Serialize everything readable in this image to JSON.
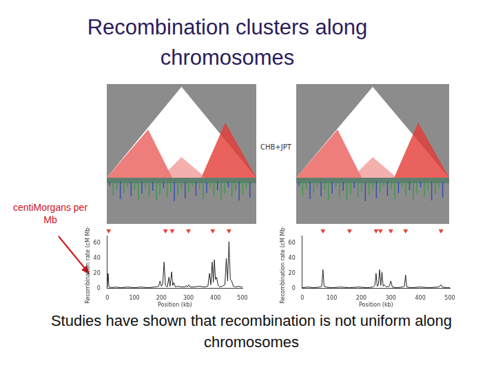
{
  "title": "Recombination clusters along chromosomes",
  "caption": "Studies have shown that recombination is not uniform along chromosomes",
  "annotation": "centiMorgans per Mb",
  "panel_label": "CHB+JPT",
  "chart_data": [
    {
      "type": "line",
      "x_label": "Position (kb)",
      "y_label": "Recombination rate (cM Mb⁻¹)",
      "x": [
        0,
        3,
        6,
        15,
        30,
        50,
        75,
        100,
        125,
        150,
        175,
        190,
        195,
        200,
        205,
        210,
        215,
        222,
        228,
        232,
        238,
        242,
        246,
        252,
        260,
        275,
        288,
        292,
        296,
        302,
        306,
        320,
        340,
        360,
        372,
        378,
        383,
        388,
        392,
        396,
        400,
        404,
        410,
        416,
        425,
        435,
        440,
        445,
        450,
        455,
        460,
        466,
        475,
        485,
        495,
        500
      ],
      "values": [
        2,
        20,
        2,
        1,
        2,
        1,
        2,
        1,
        2,
        1,
        2,
        3,
        10,
        3,
        6,
        35,
        4,
        2,
        15,
        3,
        22,
        4,
        8,
        2,
        3,
        2,
        2,
        4,
        2,
        5,
        2,
        2,
        3,
        2,
        3,
        20,
        5,
        35,
        8,
        38,
        12,
        15,
        4,
        2,
        3,
        5,
        40,
        10,
        62,
        12,
        10,
        3,
        2,
        3,
        2,
        2
      ],
      "color": "#222222",
      "hotspots": [
        5,
        215,
        240,
        300,
        390,
        450
      ],
      "xlim": [
        0,
        500
      ],
      "xticks": [
        0,
        100,
        200,
        300,
        400,
        500
      ],
      "ylim": [
        0,
        70
      ],
      "yticks": [
        0,
        20,
        40,
        60
      ],
      "grid": false
    },
    {
      "type": "line",
      "x_label": "Position (kb)",
      "y_label": "Recombination rate (cM Mb⁻¹)",
      "x": [
        0,
        20,
        40,
        60,
        66,
        70,
        74,
        80,
        100,
        130,
        160,
        190,
        220,
        240,
        246,
        250,
        254,
        258,
        262,
        266,
        270,
        274,
        278,
        285,
        295,
        300,
        305,
        320,
        340,
        346,
        350,
        354,
        370,
        400,
        430,
        460,
        466,
        470,
        474,
        490,
        500
      ],
      "values": [
        1,
        2,
        1,
        2,
        3,
        25,
        3,
        2,
        1,
        2,
        1,
        2,
        1,
        2,
        4,
        20,
        3,
        5,
        25,
        4,
        22,
        3,
        5,
        2,
        3,
        10,
        2,
        1,
        2,
        3,
        18,
        2,
        1,
        2,
        1,
        2,
        3,
        5,
        2,
        1,
        1
      ],
      "color": "#222222",
      "hotspots": [
        70,
        160,
        250,
        265,
        300,
        350,
        470
      ],
      "xlim": [
        0,
        500
      ],
      "xticks": [
        0,
        100,
        200,
        300,
        400,
        500
      ],
      "ylim": [
        0,
        70
      ],
      "yticks": [
        0,
        20,
        40,
        60
      ],
      "grid": false
    }
  ]
}
